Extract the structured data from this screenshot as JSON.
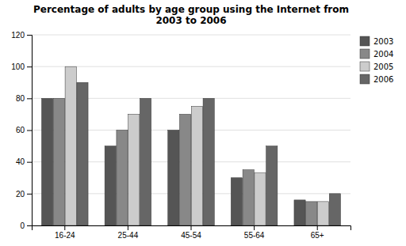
{
  "chart_data": {
    "type": "bar",
    "title": "Percentage of adults by age group using the Internet from\n2003 to 2006",
    "categories": [
      "16-24",
      "25-44",
      "45-54",
      "55-64",
      "65+"
    ],
    "series": [
      {
        "name": "2003",
        "color": "#555555",
        "values": [
          80,
          50,
          60,
          30,
          16
        ]
      },
      {
        "name": "2004",
        "color": "#888888",
        "values": [
          80,
          60,
          70,
          35,
          15
        ]
      },
      {
        "name": "2005",
        "color": "#cccccc",
        "values": [
          100,
          70,
          75,
          33,
          15
        ]
      },
      {
        "name": "2006",
        "color": "#666666",
        "values": [
          90,
          80,
          80,
          50,
          20
        ]
      }
    ],
    "ylim": [
      0,
      120
    ],
    "yticks": [
      0,
      20,
      40,
      60,
      80,
      100,
      120
    ],
    "grid": true,
    "legend": "upper right"
  }
}
